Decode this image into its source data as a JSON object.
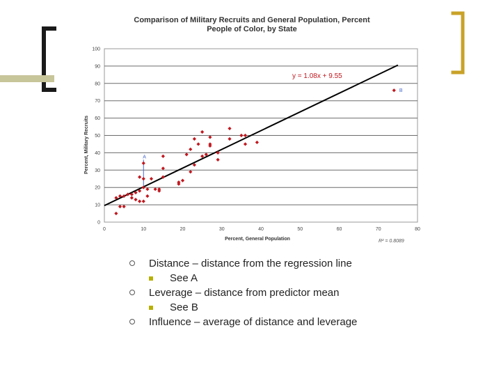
{
  "colors": {
    "bracket_dark": "#1a1a1a",
    "bracket_gold": "#c9a227",
    "olive_bar": "#c7c59a",
    "marker": "#c0181f",
    "bullet_square": "#b7b000",
    "grid": "#6b6b6b",
    "axis_text": "#444444"
  },
  "chart_data": {
    "type": "scatter",
    "title_lines": [
      "Comparison of Military Recruits and General Population, Percent",
      "People of Color, by State"
    ],
    "xlabel": "Percent, General Population",
    "ylabel": "Percent, Military Recruits",
    "xlim": [
      0,
      80
    ],
    "ylim": [
      0,
      100
    ],
    "xticks": [
      "0",
      "10",
      "20",
      "30",
      "40",
      "50",
      "60",
      "70",
      "80"
    ],
    "yticks": [
      "0",
      "10",
      "20",
      "30",
      "40",
      "50",
      "60",
      "70",
      "80",
      "90",
      "100"
    ],
    "grid": "horizontal",
    "regression": {
      "equation": "y = 1.08x + 9.55",
      "slope": 1.08,
      "intercept": 9.55,
      "x_range": [
        0,
        75
      ],
      "r_squared": "R² = 0.8089"
    },
    "points": [
      [
        3,
        5
      ],
      [
        3,
        14
      ],
      [
        4,
        9
      ],
      [
        4,
        15
      ],
      [
        5,
        9
      ],
      [
        5,
        15
      ],
      [
        6,
        16
      ],
      [
        7,
        14
      ],
      [
        7,
        16
      ],
      [
        8,
        13
      ],
      [
        8,
        17
      ],
      [
        9,
        12
      ],
      [
        9,
        18
      ],
      [
        9,
        26
      ],
      [
        10,
        12
      ],
      [
        10,
        20
      ],
      [
        10,
        25
      ],
      [
        10,
        34
      ],
      [
        11,
        19
      ],
      [
        11,
        15
      ],
      [
        12,
        25
      ],
      [
        13,
        19
      ],
      [
        14,
        19
      ],
      [
        14,
        18
      ],
      [
        15,
        26
      ],
      [
        15,
        31
      ],
      [
        15,
        38
      ],
      [
        19,
        22
      ],
      [
        19,
        23
      ],
      [
        20,
        24
      ],
      [
        21,
        39
      ],
      [
        22,
        29
      ],
      [
        22,
        42
      ],
      [
        23,
        33
      ],
      [
        23,
        48
      ],
      [
        24,
        45
      ],
      [
        25,
        38
      ],
      [
        25,
        52
      ],
      [
        26,
        39
      ],
      [
        27,
        44
      ],
      [
        27,
        45
      ],
      [
        27,
        49
      ],
      [
        29,
        40
      ],
      [
        29,
        36
      ],
      [
        32,
        54
      ],
      [
        32,
        48
      ],
      [
        35,
        50
      ],
      [
        36,
        50
      ],
      [
        36,
        45
      ],
      [
        39,
        46
      ],
      [
        74,
        76
      ]
    ],
    "annotations": [
      {
        "label": "A",
        "x": 10,
        "y": 36
      },
      {
        "label": "B",
        "x": 75,
        "y": 76
      }
    ],
    "residual_line": {
      "x": 10,
      "y_from": 20.4,
      "y_to": 36
    }
  },
  "bullets": [
    {
      "text": "Distance – distance from the regression line",
      "sub": "See A"
    },
    {
      "text": "Leverage – distance from predictor mean",
      "sub": "See B"
    },
    {
      "text": "Influence – average of distance and leverage",
      "sub": null
    }
  ]
}
